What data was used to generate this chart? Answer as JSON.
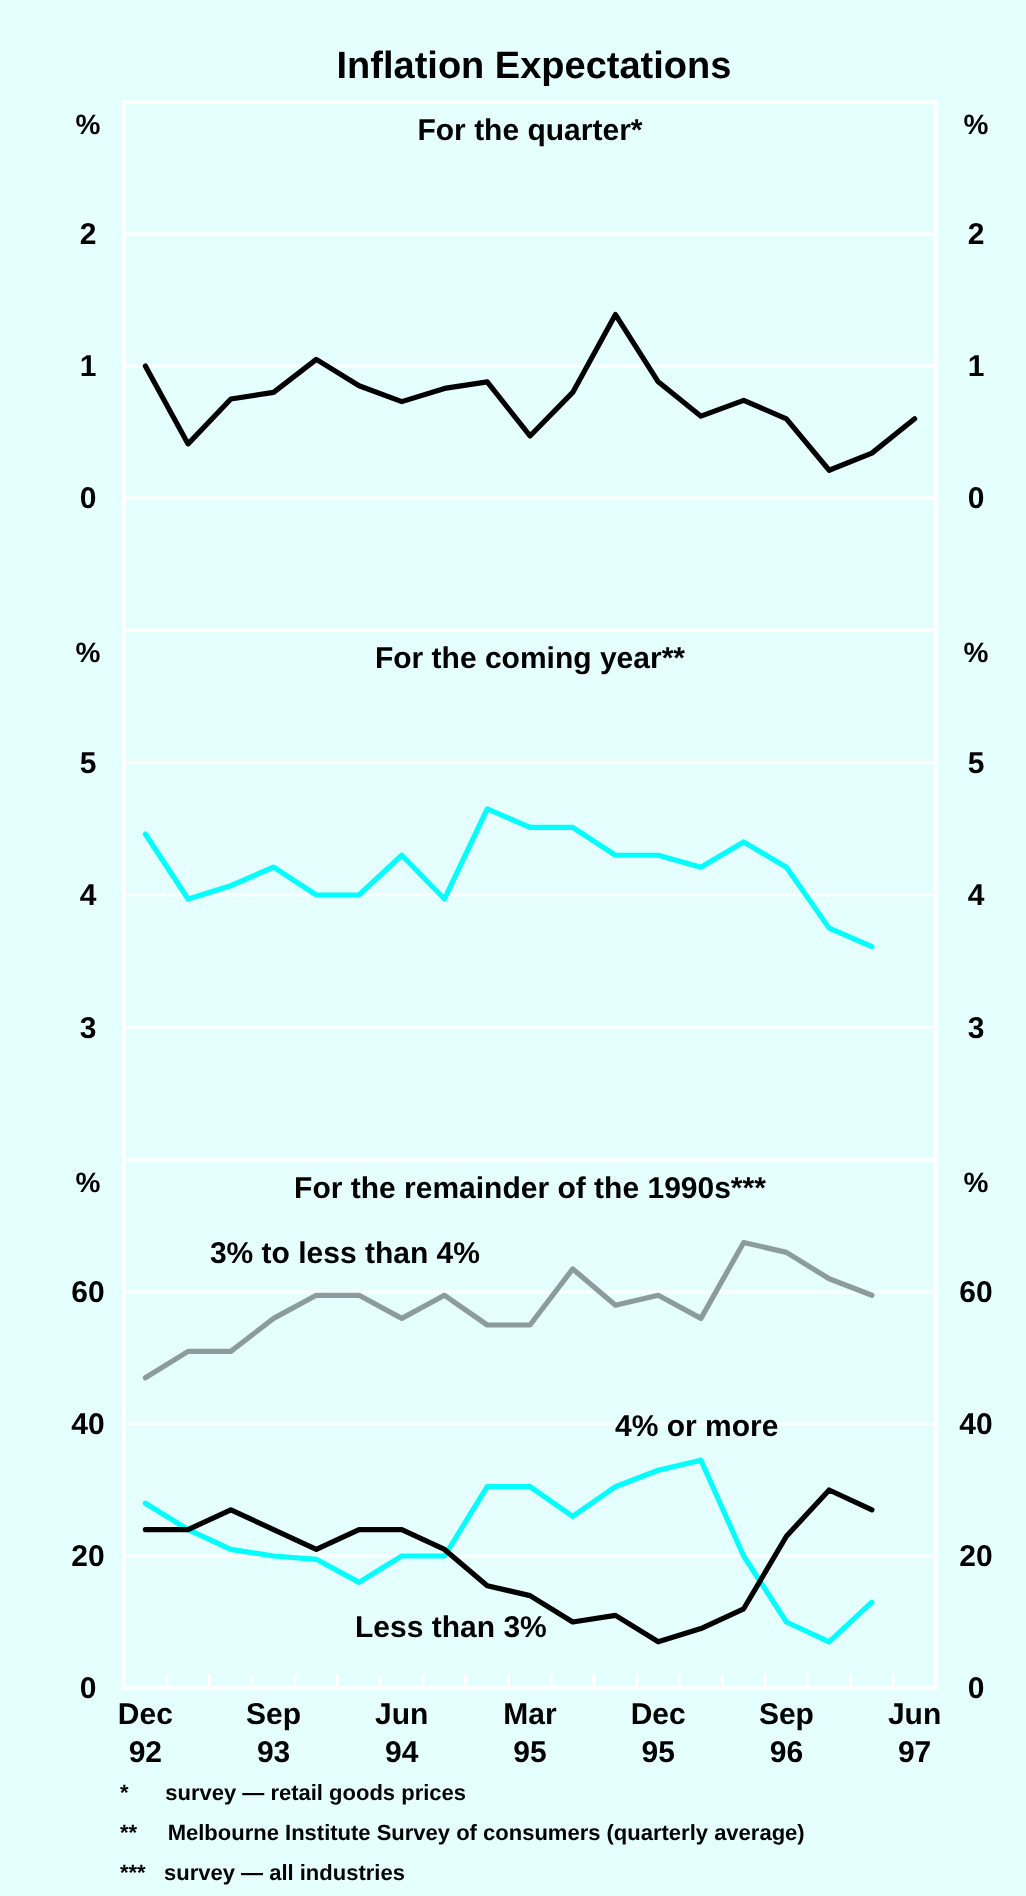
{
  "chart_data": [
    {
      "type": "line",
      "title": "Inflation Expectations",
      "subtitle": "For the quarter*",
      "ylabel": "%",
      "y2label": "%",
      "categories": [
        null,
        null,
        null,
        null,
        null,
        null,
        null,
        null,
        null,
        null,
        null,
        null,
        null,
        null,
        null,
        null,
        null,
        null,
        null
      ],
      "series": [
        {
          "color": "#000000",
          "values": [
            1.0,
            0.41,
            0.75,
            0.8,
            1.05,
            0.85,
            0.73,
            0.83,
            0.88,
            0.47,
            0.8,
            1.39,
            0.88,
            0.62,
            0.74,
            0.6,
            0.21,
            0.34,
            0.6
          ]
        }
      ],
      "ylim": [
        -1,
        3
      ],
      "yticks": [
        0,
        1,
        2
      ],
      "y2lim": [
        -1,
        3
      ],
      "y2ticks": [
        0,
        1,
        2
      ],
      "grid": "y",
      "tick_labels": "y"
    },
    {
      "type": "line",
      "title": "For the coming year**",
      "ylabel": "%",
      "y2label": "%",
      "categories": [
        null,
        null,
        null,
        null,
        null,
        null,
        null,
        null,
        null,
        null,
        null,
        null,
        null,
        null,
        null,
        null,
        null,
        null,
        null
      ],
      "series": [
        {
          "color": "#00ffff",
          "values": [
            4.46,
            3.97,
            4.07,
            4.21,
            4.0,
            4.0,
            4.3,
            3.97,
            4.65,
            4.51,
            4.51,
            4.3,
            4.3,
            4.21,
            4.4,
            4.21,
            3.75,
            3.61,
            null
          ]
        }
      ],
      "ylim": [
        2,
        6
      ],
      "yticks": [
        3,
        4,
        5
      ],
      "y2lim": [
        2,
        6
      ],
      "y2ticks": [
        3,
        4,
        5
      ],
      "grid": "y",
      "tick_labels": "y"
    },
    {
      "type": "line",
      "title": "For the remainder of the 1990s***",
      "ylabel": "%",
      "y2label": "%",
      "categories": [
        "Dec 92",
        null,
        null,
        "Sep 93",
        null,
        null,
        "Jun 94",
        null,
        null,
        "Mar 95",
        null,
        null,
        "Dec 95",
        null,
        null,
        "Sep 96",
        null,
        null,
        "Jun 97"
      ],
      "series": [
        {
          "name": "3% to less than 4%",
          "color": "#8c9c9c",
          "values": [
            47,
            51,
            51,
            56,
            59.5,
            59.5,
            56,
            59.5,
            55,
            55,
            63.5,
            58,
            59.5,
            56,
            67.5,
            66,
            62,
            59.5,
            null
          ]
        },
        {
          "name": "4% or more",
          "color": "#00ffff",
          "values": [
            28,
            24,
            21,
            20,
            19.5,
            16,
            20,
            20,
            30.5,
            30.5,
            26,
            30.5,
            33,
            34.5,
            20,
            10,
            7,
            13,
            null
          ]
        },
        {
          "name": "Less than 3%",
          "color": "#000000",
          "values": [
            24,
            24,
            27,
            24,
            21,
            24,
            24,
            21,
            15.5,
            14,
            10,
            11,
            7,
            9,
            12,
            23,
            30,
            27,
            null
          ]
        }
      ],
      "ylim": [
        0,
        80
      ],
      "yticks": [
        0,
        20,
        40,
        60
      ],
      "y2lim": [
        0,
        80
      ],
      "y2ticks": [
        0,
        20,
        40,
        60
      ],
      "grid": "y",
      "annotations": [
        "*      survey — retail goods prices",
        "**     Melbourne Institute Survey of consumers (quarterly average)",
        "***   survey — all industries"
      ]
    }
  ]
}
